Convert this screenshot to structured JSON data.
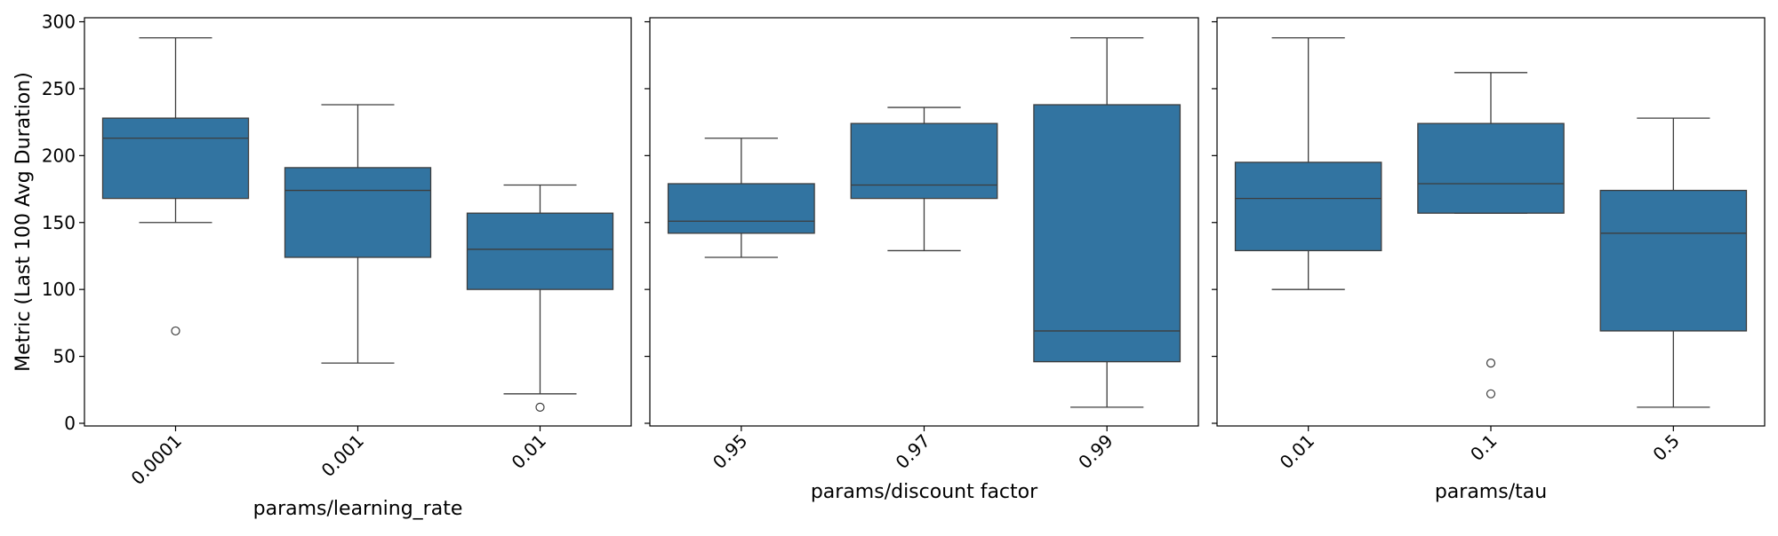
{
  "chart_data": [
    {
      "type": "box",
      "xlabel": "params/learning_rate",
      "ylabel": "Metric (Last 100 Avg Duration)",
      "ylim": [
        -2,
        303
      ],
      "yticks": [
        0,
        50,
        100,
        150,
        200,
        250,
        300
      ],
      "box_color": "#3274a1",
      "categories": [
        "0.0001",
        "0.001",
        "0.01"
      ],
      "boxes": [
        {
          "whisker_low": 150,
          "q1": 168,
          "median": 213,
          "q3": 228,
          "whisker_high": 288,
          "outliers": [
            69
          ]
        },
        {
          "whisker_low": 45,
          "q1": 124,
          "median": 174,
          "q3": 191,
          "whisker_high": 238,
          "outliers": []
        },
        {
          "whisker_low": 22,
          "q1": 100,
          "median": 130,
          "q3": 157,
          "whisker_high": 178,
          "outliers": [
            12
          ]
        }
      ]
    },
    {
      "type": "box",
      "xlabel": "params/discount factor",
      "ylabel": "",
      "ylim": [
        -2,
        303
      ],
      "yticks": [
        0,
        50,
        100,
        150,
        200,
        250,
        300
      ],
      "box_color": "#3274a1",
      "categories": [
        "0.95",
        "0.97",
        "0.99"
      ],
      "boxes": [
        {
          "whisker_low": 124,
          "q1": 142,
          "median": 151,
          "q3": 179,
          "whisker_high": 213,
          "outliers": []
        },
        {
          "whisker_low": 129,
          "q1": 168,
          "median": 178,
          "q3": 224,
          "whisker_high": 236,
          "outliers": []
        },
        {
          "whisker_low": 12,
          "q1": 46,
          "median": 69,
          "q3": 238,
          "whisker_high": 288,
          "outliers": []
        }
      ]
    },
    {
      "type": "box",
      "xlabel": "params/tau",
      "ylabel": "",
      "ylim": [
        -2,
        303
      ],
      "yticks": [
        0,
        50,
        100,
        150,
        200,
        250,
        300
      ],
      "box_color": "#3274a1",
      "categories": [
        "0.01",
        "0.1",
        "0.5"
      ],
      "boxes": [
        {
          "whisker_low": 100,
          "q1": 129,
          "median": 168,
          "q3": 195,
          "whisker_high": 288,
          "outliers": []
        },
        {
          "whisker_low": 157,
          "q1": 157,
          "median": 179,
          "q3": 224,
          "whisker_high": 262,
          "outliers": [
            45,
            22
          ]
        },
        {
          "whisker_low": 12,
          "q1": 69,
          "median": 142,
          "q3": 174,
          "whisker_high": 228,
          "outliers": []
        }
      ]
    }
  ]
}
